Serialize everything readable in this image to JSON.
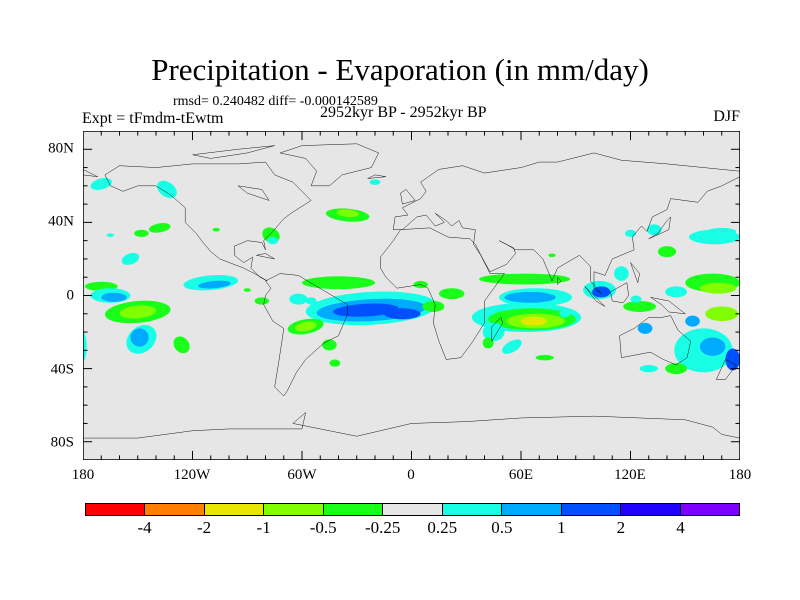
{
  "title": "Precipitation - Evaporation (in mm/day)",
  "stats": "rmsd= 0.240482 diff= -0.000142589",
  "period": "2952kyr BP - 2952kyr BP",
  "experiment": "Expt = tFmdm-tEwtm",
  "season": "DJF",
  "chart_data": {
    "type": "heatmap",
    "projection": "cylindrical-equidistant",
    "lon_range": [
      -180,
      180
    ],
    "lat_range": [
      -90,
      90
    ],
    "x_tick_labels": [
      "180",
      "120W",
      "60W",
      "0",
      "60E",
      "120E",
      "180"
    ],
    "y_tick_labels": [
      "80N",
      "40N",
      "0",
      "40S",
      "80S"
    ],
    "y_tick_values": [
      80,
      40,
      0,
      -40,
      -80
    ],
    "colorbar": {
      "levels": [
        "-4",
        "-2",
        "-1",
        "-0.5",
        "-0.25",
        "0.25",
        "0.5",
        "1",
        "2",
        "4"
      ],
      "colors": [
        "#ff0000",
        "#ff8000",
        "#e6e600",
        "#80ff00",
        "#19ff19",
        "#e6e6e6",
        "#19ffe6",
        "#00aaff",
        "#0050ff",
        "#2000ff",
        "#8000ff"
      ]
    }
  }
}
